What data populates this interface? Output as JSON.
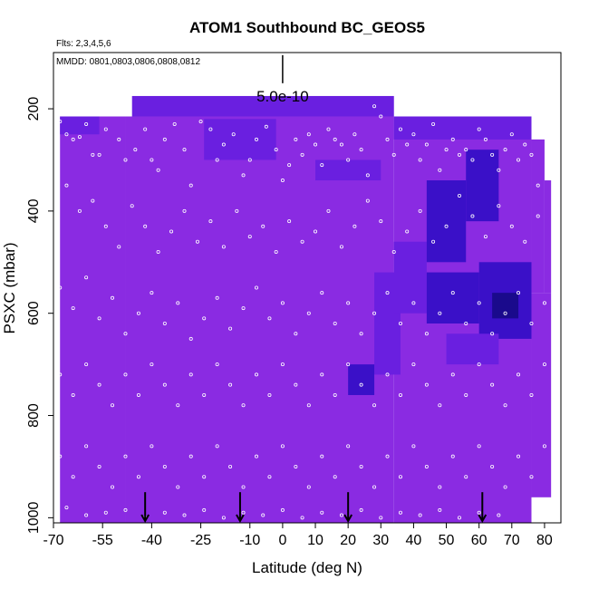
{
  "chart_data": {
    "type": "heatmap",
    "title": "ATOM1 Southbound BC_GEOS5",
    "flights_note": "Flts: 2,3,4,5,6",
    "dates_note": "MMDD: 0801,0803,0806,0808,0812",
    "xlabel": "Latitude (deg N)",
    "ylabel": "PSXC (mbar)",
    "xlim": [
      -70,
      85
    ],
    "ylim": [
      1010,
      90
    ],
    "x_ticks": [
      -70,
      -55,
      -40,
      -25,
      -10,
      0,
      10,
      20,
      30,
      40,
      50,
      60,
      70,
      80
    ],
    "x_tick_labels": [
      "-70",
      "-55",
      "-40",
      "-25",
      "-10",
      "0",
      "10",
      "20",
      "30",
      "40",
      "50",
      "60",
      "70",
      "80"
    ],
    "y_ticks": [
      200,
      400,
      600,
      800,
      1000
    ],
    "y_tick_labels": [
      "200",
      "400",
      "600",
      "800",
      "1000"
    ],
    "scale_label": "5.0e-10",
    "scale_bar_x": 0,
    "scale_bar_range": [
      150,
      95
    ],
    "colors": {
      "base": "#8a2be2",
      "medium": "#6a1fe0",
      "high": "#3a10c8",
      "max": "#1a0a8c",
      "points": "#ffffff",
      "axes": "#000000"
    },
    "cells": [
      {
        "lat": [
          -68,
          -48
        ],
        "p": [
          215,
          1010
        ],
        "level": 0
      },
      {
        "lat": [
          -48,
          34
        ],
        "p": [
          215,
          1010
        ],
        "level": 0
      },
      {
        "lat": [
          -46,
          34
        ],
        "p": [
          175,
          215
        ],
        "level": 1
      },
      {
        "lat": [
          34,
          76
        ],
        "p": [
          215,
          1010
        ],
        "level": 0
      },
      {
        "lat": [
          34,
          76
        ],
        "p": [
          215,
          260
        ],
        "level": 1
      },
      {
        "lat": [
          76,
          80
        ],
        "p": [
          260,
          560
        ],
        "level": 0
      },
      {
        "lat": [
          80,
          82
        ],
        "p": [
          340,
          560
        ],
        "level": 0
      },
      {
        "lat": [
          76,
          82
        ],
        "p": [
          560,
          960
        ],
        "level": 0
      },
      {
        "lat": [
          -68,
          -56
        ],
        "p": [
          215,
          250
        ],
        "level": 1
      },
      {
        "lat": [
          -24,
          -2
        ],
        "p": [
          220,
          300
        ],
        "level": 1
      },
      {
        "lat": [
          10,
          30
        ],
        "p": [
          300,
          340
        ],
        "level": 1
      },
      {
        "lat": [
          28,
          36
        ],
        "p": [
          520,
          720
        ],
        "level": 1
      },
      {
        "lat": [
          34,
          44
        ],
        "p": [
          460,
          600
        ],
        "level": 1
      },
      {
        "lat": [
          44,
          56
        ],
        "p": [
          340,
          500
        ],
        "level": 2
      },
      {
        "lat": [
          56,
          66
        ],
        "p": [
          280,
          420
        ],
        "level": 2
      },
      {
        "lat": [
          44,
          60
        ],
        "p": [
          520,
          620
        ],
        "level": 2
      },
      {
        "lat": [
          60,
          76
        ],
        "p": [
          500,
          650
        ],
        "level": 2
      },
      {
        "lat": [
          64,
          72
        ],
        "p": [
          560,
          610
        ],
        "level": 3
      },
      {
        "lat": [
          20,
          28
        ],
        "p": [
          700,
          760
        ],
        "level": 2
      },
      {
        "lat": [
          50,
          66
        ],
        "p": [
          640,
          700
        ],
        "level": 1
      }
    ],
    "arrows_lat": [
      -42,
      -13,
      20,
      61
    ],
    "arrows_p": [
      950,
      1010
    ],
    "observation_points": [
      [
        -68,
        225
      ],
      [
        -66,
        250
      ],
      [
        -64,
        260
      ],
      [
        -62,
        255
      ],
      [
        -60,
        230
      ],
      [
        -58,
        290
      ],
      [
        -56,
        290
      ],
      [
        -54,
        240
      ],
      [
        -50,
        260
      ],
      [
        -48,
        300
      ],
      [
        -45,
        280
      ],
      [
        -42,
        240
      ],
      [
        -40,
        300
      ],
      [
        -38,
        320
      ],
      [
        -36,
        260
      ],
      [
        -33,
        230
      ],
      [
        -30,
        280
      ],
      [
        -28,
        350
      ],
      [
        -25,
        225
      ],
      [
        -22,
        240
      ],
      [
        -20,
        300
      ],
      [
        -18,
        270
      ],
      [
        -15,
        250
      ],
      [
        -12,
        330
      ],
      [
        -10,
        300
      ],
      [
        -8,
        260
      ],
      [
        -5,
        235
      ],
      [
        -2,
        280
      ],
      [
        0,
        340
      ],
      [
        2,
        310
      ],
      [
        4,
        260
      ],
      [
        6,
        290
      ],
      [
        8,
        250
      ],
      [
        10,
        270
      ],
      [
        12,
        310
      ],
      [
        14,
        240
      ],
      [
        16,
        260
      ],
      [
        18,
        270
      ],
      [
        20,
        300
      ],
      [
        22,
        250
      ],
      [
        24,
        280
      ],
      [
        26,
        330
      ],
      [
        28,
        195
      ],
      [
        30,
        215
      ],
      [
        32,
        260
      ],
      [
        34,
        290
      ],
      [
        36,
        240
      ],
      [
        38,
        270
      ],
      [
        40,
        250
      ],
      [
        42,
        300
      ],
      [
        44,
        270
      ],
      [
        46,
        230
      ],
      [
        48,
        320
      ],
      [
        50,
        280
      ],
      [
        52,
        260
      ],
      [
        54,
        290
      ],
      [
        56,
        280
      ],
      [
        58,
        300
      ],
      [
        60,
        240
      ],
      [
        62,
        260
      ],
      [
        64,
        290
      ],
      [
        66,
        320
      ],
      [
        68,
        280
      ],
      [
        70,
        250
      ],
      [
        72,
        300
      ],
      [
        74,
        270
      ],
      [
        76,
        290
      ],
      [
        78,
        350
      ],
      [
        -66,
        350
      ],
      [
        -62,
        400
      ],
      [
        -58,
        380
      ],
      [
        -54,
        430
      ],
      [
        -50,
        470
      ],
      [
        -46,
        390
      ],
      [
        -42,
        430
      ],
      [
        -38,
        480
      ],
      [
        -34,
        440
      ],
      [
        -30,
        400
      ],
      [
        -26,
        460
      ],
      [
        -22,
        420
      ],
      [
        -18,
        470
      ],
      [
        -14,
        400
      ],
      [
        -10,
        450
      ],
      [
        -6,
        430
      ],
      [
        -2,
        480
      ],
      [
        2,
        420
      ],
      [
        6,
        460
      ],
      [
        10,
        440
      ],
      [
        14,
        400
      ],
      [
        18,
        470
      ],
      [
        22,
        430
      ],
      [
        26,
        380
      ],
      [
        30,
        420
      ],
      [
        34,
        480
      ],
      [
        38,
        440
      ],
      [
        42,
        400
      ],
      [
        46,
        460
      ],
      [
        50,
        430
      ],
      [
        54,
        370
      ],
      [
        58,
        410
      ],
      [
        62,
        450
      ],
      [
        66,
        390
      ],
      [
        70,
        430
      ],
      [
        74,
        460
      ],
      [
        78,
        410
      ],
      [
        -68,
        550
      ],
      [
        -64,
        590
      ],
      [
        -60,
        530
      ],
      [
        -56,
        610
      ],
      [
        -52,
        570
      ],
      [
        -48,
        640
      ],
      [
        -44,
        600
      ],
      [
        -40,
        560
      ],
      [
        -36,
        620
      ],
      [
        -32,
        580
      ],
      [
        -28,
        650
      ],
      [
        -24,
        610
      ],
      [
        -20,
        570
      ],
      [
        -16,
        630
      ],
      [
        -12,
        590
      ],
      [
        -8,
        550
      ],
      [
        -4,
        610
      ],
      [
        0,
        580
      ],
      [
        4,
        640
      ],
      [
        8,
        600
      ],
      [
        12,
        560
      ],
      [
        16,
        620
      ],
      [
        20,
        580
      ],
      [
        24,
        640
      ],
      [
        28,
        600
      ],
      [
        32,
        560
      ],
      [
        36,
        620
      ],
      [
        40,
        580
      ],
      [
        44,
        640
      ],
      [
        48,
        600
      ],
      [
        52,
        560
      ],
      [
        56,
        620
      ],
      [
        60,
        580
      ],
      [
        64,
        640
      ],
      [
        68,
        600
      ],
      [
        72,
        560
      ],
      [
        76,
        620
      ],
      [
        80,
        580
      ],
      [
        -68,
        720
      ],
      [
        -64,
        760
      ],
      [
        -60,
        700
      ],
      [
        -56,
        740
      ],
      [
        -52,
        780
      ],
      [
        -48,
        720
      ],
      [
        -44,
        760
      ],
      [
        -40,
        700
      ],
      [
        -36,
        740
      ],
      [
        -32,
        780
      ],
      [
        -28,
        720
      ],
      [
        -24,
        760
      ],
      [
        -20,
        700
      ],
      [
        -16,
        740
      ],
      [
        -12,
        780
      ],
      [
        -8,
        720
      ],
      [
        -4,
        760
      ],
      [
        0,
        700
      ],
      [
        4,
        740
      ],
      [
        8,
        780
      ],
      [
        12,
        720
      ],
      [
        16,
        760
      ],
      [
        20,
        700
      ],
      [
        24,
        740
      ],
      [
        28,
        780
      ],
      [
        32,
        720
      ],
      [
        36,
        760
      ],
      [
        40,
        700
      ],
      [
        44,
        740
      ],
      [
        48,
        780
      ],
      [
        52,
        720
      ],
      [
        56,
        760
      ],
      [
        60,
        700
      ],
      [
        64,
        740
      ],
      [
        68,
        780
      ],
      [
        72,
        720
      ],
      [
        76,
        760
      ],
      [
        80,
        700
      ],
      [
        -68,
        880
      ],
      [
        -64,
        920
      ],
      [
        -60,
        860
      ],
      [
        -56,
        900
      ],
      [
        -52,
        940
      ],
      [
        -48,
        880
      ],
      [
        -44,
        920
      ],
      [
        -40,
        860
      ],
      [
        -36,
        900
      ],
      [
        -32,
        940
      ],
      [
        -28,
        880
      ],
      [
        -24,
        920
      ],
      [
        -20,
        860
      ],
      [
        -16,
        900
      ],
      [
        -12,
        940
      ],
      [
        -8,
        880
      ],
      [
        -4,
        920
      ],
      [
        0,
        860
      ],
      [
        4,
        900
      ],
      [
        8,
        940
      ],
      [
        12,
        880
      ],
      [
        16,
        920
      ],
      [
        20,
        860
      ],
      [
        24,
        900
      ],
      [
        28,
        940
      ],
      [
        32,
        880
      ],
      [
        36,
        920
      ],
      [
        40,
        860
      ],
      [
        44,
        900
      ],
      [
        48,
        940
      ],
      [
        52,
        880
      ],
      [
        56,
        920
      ],
      [
        60,
        860
      ],
      [
        64,
        900
      ],
      [
        68,
        940
      ],
      [
        72,
        880
      ],
      [
        76,
        920
      ],
      [
        80,
        860
      ],
      [
        -66,
        980
      ],
      [
        -60,
        995
      ],
      [
        -54,
        990
      ],
      [
        -48,
        985
      ],
      [
        -42,
        1000
      ],
      [
        -36,
        990
      ],
      [
        -30,
        995
      ],
      [
        -24,
        985
      ],
      [
        -18,
        1000
      ],
      [
        -12,
        990
      ],
      [
        -6,
        995
      ],
      [
        0,
        985
      ],
      [
        6,
        1000
      ],
      [
        12,
        990
      ],
      [
        18,
        995
      ],
      [
        24,
        985
      ],
      [
        30,
        1000
      ],
      [
        36,
        990
      ],
      [
        42,
        995
      ],
      [
        48,
        985
      ],
      [
        54,
        1000
      ],
      [
        60,
        990
      ],
      [
        66,
        995
      ]
    ]
  }
}
